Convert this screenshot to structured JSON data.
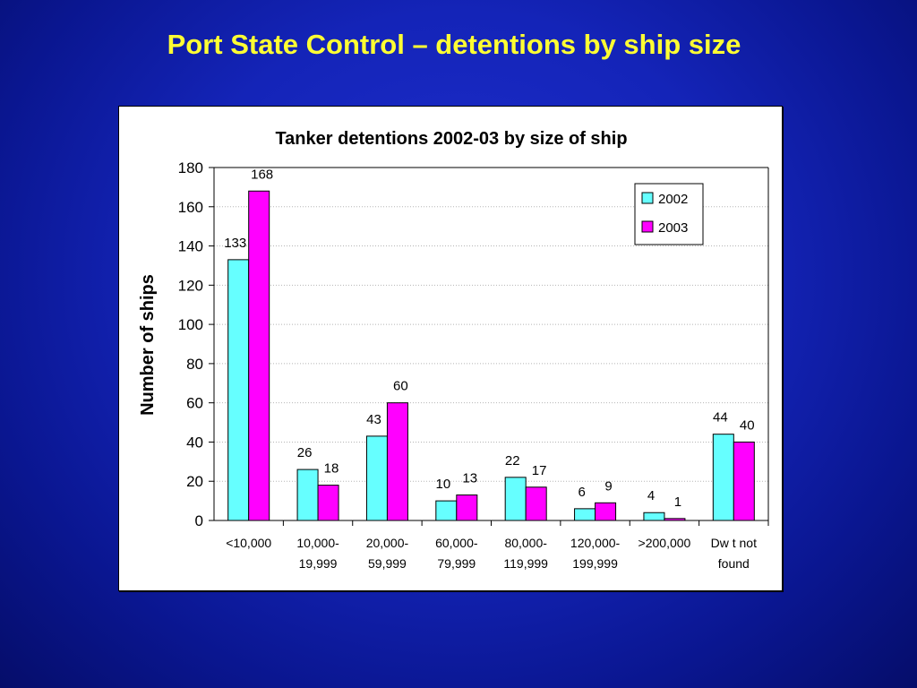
{
  "slide": {
    "title": "Port State Control – detentions by ship size",
    "background_color": "#1424b8",
    "title_color": "#ffff33"
  },
  "chart_data": {
    "type": "bar",
    "title": "Tanker detentions 2002-03 by size of ship",
    "xlabel": "",
    "ylabel": "Number of ships",
    "ylim": [
      0,
      180
    ],
    "yticks": [
      0,
      20,
      40,
      60,
      80,
      100,
      120,
      140,
      160,
      180
    ],
    "grid": true,
    "legend_position": "top-right",
    "categories": [
      [
        "<10,000"
      ],
      [
        "10,000-",
        "19,999"
      ],
      [
        "20,000-",
        "59,999"
      ],
      [
        "60,000-",
        "79,999"
      ],
      [
        "80,000-",
        "119,999"
      ],
      [
        "120,000-",
        "199,999"
      ],
      [
        ">200,000"
      ],
      [
        "Dw t not",
        "found"
      ]
    ],
    "series": [
      {
        "name": "2002",
        "color": "#66ffff",
        "values": [
          133,
          26,
          43,
          10,
          22,
          6,
          4,
          44
        ]
      },
      {
        "name": "2003",
        "color": "#ff00ff",
        "values": [
          168,
          18,
          60,
          13,
          17,
          9,
          1,
          40
        ]
      }
    ]
  }
}
